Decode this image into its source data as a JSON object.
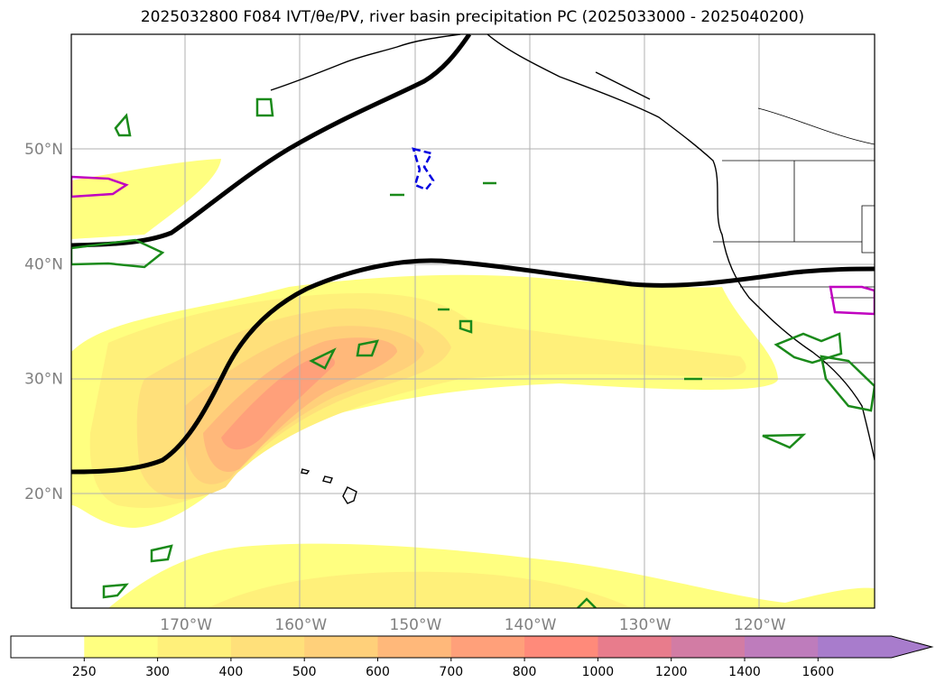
{
  "title": "2025032800 F084 IVT/θe/PV, river basin precipitation PC (2025033000 - 2025040200)",
  "map": {
    "lon_range": [
      -180,
      -110
    ],
    "lat_range": [
      10,
      60
    ],
    "lat_ticks": [
      {
        "value": 20,
        "label": "20°N"
      },
      {
        "value": 30,
        "label": "30°N"
      },
      {
        "value": 40,
        "label": "40°N"
      },
      {
        "value": 50,
        "label": "50°N"
      }
    ],
    "lon_ticks": [
      {
        "value": -170,
        "label": "170°W"
      },
      {
        "value": -160,
        "label": "160°W"
      },
      {
        "value": -150,
        "label": "150°W"
      },
      {
        "value": -140,
        "label": "140°W"
      },
      {
        "value": -130,
        "label": "130°W"
      },
      {
        "value": -120,
        "label": "120°W"
      }
    ],
    "grid": true
  },
  "colorbar": {
    "levels": [
      "250",
      "300",
      "400",
      "500",
      "600",
      "700",
      "800",
      "1000",
      "1200",
      "1400",
      "1600"
    ],
    "colors": [
      "#ffffff",
      "#ffff80",
      "#fff07a",
      "#ffe07a",
      "#ffd07a",
      "#ffb87a",
      "#ffa07a",
      "#ff8a7a",
      "#e87c8c",
      "#d27ca4",
      "#be7cbc",
      "#a87ccc"
    ],
    "extend": "max"
  }
}
